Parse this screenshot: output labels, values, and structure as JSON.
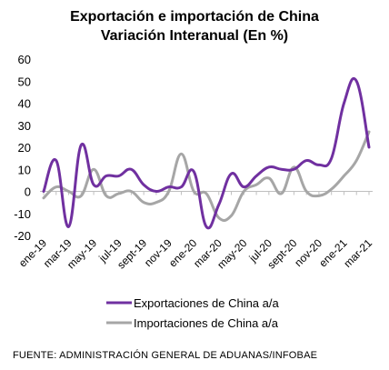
{
  "chart_data": {
    "type": "line",
    "title": "Exportación e importación de China",
    "subtitle": "Variación Interanual (En %)",
    "xlabel": "",
    "ylabel": "",
    "ylim": [
      -20,
      60
    ],
    "yticks": [
      -20,
      -10,
      0,
      10,
      20,
      30,
      40,
      50,
      60
    ],
    "x": [
      "ene-19",
      "feb-19",
      "mar-19",
      "abr-19",
      "may-19",
      "jun-19",
      "jul-19",
      "ago-19",
      "sept-19",
      "oct-19",
      "nov-19",
      "dic-19",
      "ene-20",
      "feb-20",
      "mar-20",
      "abr-20",
      "may-20",
      "jun-20",
      "jul-20",
      "ago-20",
      "sept-20",
      "oct-20",
      "nov-20",
      "dic-20",
      "ene-21",
      "feb-21",
      "mar-21"
    ],
    "x_tick_labels": [
      "ene-19",
      "mar-19",
      "may-19",
      "jul-19",
      "sept-19",
      "nov-19",
      "ene-20",
      "mar-20",
      "may-20",
      "jul-20",
      "sept-20",
      "nov-20",
      "ene-21",
      "mar-21"
    ],
    "grid": false,
    "legend_position": "bottom",
    "series": [
      {
        "name": "Exportaciones de China a/a",
        "color": "#7030a0",
        "values": [
          0,
          14,
          -16,
          21,
          3,
          7,
          7,
          10,
          3,
          0,
          2,
          2,
          9,
          -16,
          -6,
          8,
          2,
          7,
          11,
          10,
          10,
          14,
          12,
          15,
          40,
          50,
          20
        ]
      },
      {
        "name": "Importaciones de China a/a",
        "color": "#a6a6a6",
        "values": [
          -3,
          2,
          0,
          -2,
          10,
          -2,
          -1,
          0,
          -5,
          -5,
          0,
          17,
          0,
          -1,
          -12,
          -11,
          0,
          3,
          6,
          -1,
          11,
          0,
          -2,
          1,
          7,
          14,
          27
        ]
      }
    ]
  },
  "source": "FUENTE: ADMINISTRACIÓN GENERAL DE ADUANAS/INFOBAE"
}
